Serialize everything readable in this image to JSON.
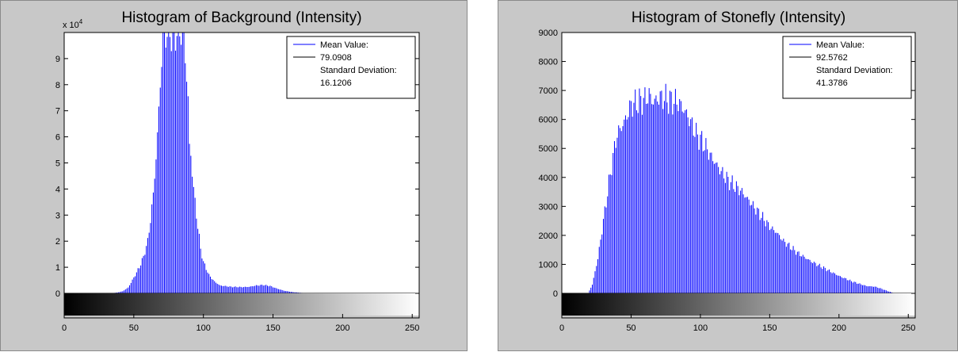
{
  "chart_data": [
    {
      "type": "bar",
      "title": "Histogram of Background (Intensity)",
      "xlabel": "",
      "ylabel": "",
      "xlim": [
        0,
        255
      ],
      "ylim": [
        0,
        100000
      ],
      "y_multiplier_label": "x 10",
      "y_multiplier_exponent": "4",
      "x_ticks": [
        0,
        50,
        100,
        150,
        200,
        250
      ],
      "y_ticks": [
        0,
        10000,
        20000,
        30000,
        40000,
        50000,
        60000,
        70000,
        80000,
        90000
      ],
      "y_tick_labels": [
        "0",
        "1",
        "2",
        "3",
        "4",
        "5",
        "6",
        "7",
        "8",
        "9"
      ],
      "grid": false,
      "legend_position": "top-right",
      "colorbar": "grayscale",
      "bar_color": "#0000ff",
      "legend": [
        {
          "label": "Mean Value:",
          "color": "#0000ff",
          "line": true
        },
        {
          "label": "79.0908",
          "color": "#000000",
          "line": true
        },
        {
          "label": "Standard Deviation:",
          "color": "",
          "line": false
        },
        {
          "label": "16.1206",
          "color": "",
          "line": false
        }
      ],
      "profile": [
        [
          0,
          2000
        ],
        [
          1,
          0
        ],
        [
          33,
          0
        ],
        [
          38,
          300
        ],
        [
          42,
          800
        ],
        [
          46,
          2200
        ],
        [
          50,
          6000
        ],
        [
          54,
          10000
        ],
        [
          57,
          14000
        ],
        [
          60,
          20000
        ],
        [
          62,
          28000
        ],
        [
          64,
          38000
        ],
        [
          66,
          52000
        ],
        [
          68,
          70000
        ],
        [
          70,
          90000
        ],
        [
          71,
          100000
        ],
        [
          86,
          100000
        ],
        [
          87,
          90000
        ],
        [
          89,
          75000
        ],
        [
          90,
          56000
        ],
        [
          91,
          53000
        ],
        [
          93,
          40000
        ],
        [
          95,
          30000
        ],
        [
          98,
          17000
        ],
        [
          100,
          12000
        ],
        [
          104,
          7000
        ],
        [
          108,
          4500
        ],
        [
          112,
          3000
        ],
        [
          120,
          2500
        ],
        [
          128,
          2400
        ],
        [
          133,
          2500
        ],
        [
          138,
          3000
        ],
        [
          143,
          3200
        ],
        [
          148,
          2800
        ],
        [
          153,
          1800
        ],
        [
          158,
          1000
        ],
        [
          164,
          500
        ],
        [
          170,
          200
        ],
        [
          175,
          0
        ],
        [
          255,
          0
        ]
      ]
    },
    {
      "type": "bar",
      "title": "Histogram of Stonefly (Intensity)",
      "xlabel": "",
      "ylabel": "",
      "xlim": [
        0,
        255
      ],
      "ylim": [
        0,
        9000
      ],
      "x_ticks": [
        0,
        50,
        100,
        150,
        200,
        250
      ],
      "y_ticks": [
        0,
        1000,
        2000,
        3000,
        4000,
        5000,
        6000,
        7000,
        8000,
        9000
      ],
      "y_tick_labels": [
        "0",
        "1000",
        "2000",
        "3000",
        "4000",
        "5000",
        "6000",
        "7000",
        "8000",
        "9000"
      ],
      "grid": false,
      "legend_position": "top-right",
      "colorbar": "grayscale",
      "bar_color": "#0000ff",
      "legend": [
        {
          "label": "Mean Value:",
          "color": "#0000ff",
          "line": true
        },
        {
          "label": "92.5762",
          "color": "#000000",
          "line": true
        },
        {
          "label": "Standard Deviation:",
          "color": "",
          "line": false
        },
        {
          "label": "41.3786",
          "color": "",
          "line": false
        }
      ],
      "profile": [
        [
          0,
          0
        ],
        [
          19,
          0
        ],
        [
          22,
          300
        ],
        [
          26,
          1200
        ],
        [
          30,
          2500
        ],
        [
          34,
          3800
        ],
        [
          38,
          5000
        ],
        [
          40,
          5500
        ],
        [
          45,
          5900
        ],
        [
          50,
          6500
        ],
        [
          55,
          6600
        ],
        [
          60,
          6700
        ],
        [
          63,
          6850
        ],
        [
          66,
          6600
        ],
        [
          70,
          6750
        ],
        [
          74,
          6750
        ],
        [
          78,
          6650
        ],
        [
          84,
          6600
        ],
        [
          90,
          6200
        ],
        [
          97,
          5500
        ],
        [
          102,
          5200
        ],
        [
          108,
          4700
        ],
        [
          115,
          4200
        ],
        [
          120,
          3900
        ],
        [
          125,
          3700
        ],
        [
          130,
          3500
        ],
        [
          135,
          3200
        ],
        [
          140,
          2900
        ],
        [
          145,
          2600
        ],
        [
          150,
          2300
        ],
        [
          155,
          2100
        ],
        [
          160,
          1800
        ],
        [
          170,
          1400
        ],
        [
          180,
          1100
        ],
        [
          190,
          850
        ],
        [
          200,
          600
        ],
        [
          210,
          400
        ],
        [
          220,
          250
        ],
        [
          226,
          230
        ],
        [
          230,
          170
        ],
        [
          235,
          80
        ],
        [
          240,
          0
        ],
        [
          255,
          0
        ]
      ]
    }
  ]
}
